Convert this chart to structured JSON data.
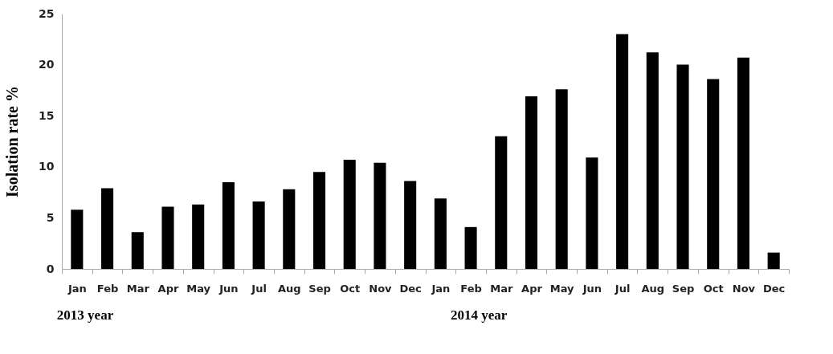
{
  "chart_data": {
    "type": "bar",
    "ylabel": "Isolation rate %",
    "categories": [
      "Jan",
      "Feb",
      "Mar",
      "Apr",
      "May",
      "Jun",
      "Jul",
      "Aug",
      "Sep",
      "Oct",
      "Nov",
      "Dec",
      "Jan",
      "Feb",
      "Mar",
      "Apr",
      "May",
      "Jun",
      "Jul",
      "Aug",
      "Sep",
      "Oct",
      "Nov",
      "Dec"
    ],
    "values": [
      5.8,
      7.9,
      3.6,
      6.1,
      6.3,
      8.5,
      6.6,
      7.8,
      9.5,
      10.7,
      10.4,
      8.6,
      6.9,
      4.1,
      13.0,
      16.9,
      17.6,
      10.9,
      23.0,
      21.2,
      20.0,
      18.6,
      20.7,
      1.6
    ],
    "color": "#000000",
    "ylim": [
      0,
      25
    ],
    "yticks": [
      0,
      5,
      10,
      15,
      20,
      25
    ],
    "grid": false,
    "annotations": [
      "2013 year",
      "2014 year"
    ]
  }
}
